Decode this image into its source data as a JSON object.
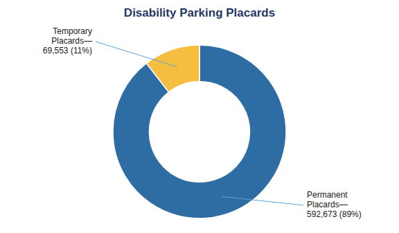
{
  "chart_data": {
    "type": "pie",
    "title": "Disability Parking Placards",
    "categories": [
      "Permanent\nPlacards—",
      "Temporary\nPlacards—"
    ],
    "values": [
      592673,
      69553
    ],
    "value_labels": [
      "592,673 (89%)",
      "69,553 (11%)"
    ],
    "colors": [
      "#2E6DA4",
      "#F5BE41"
    ],
    "data_labels": true
  }
}
